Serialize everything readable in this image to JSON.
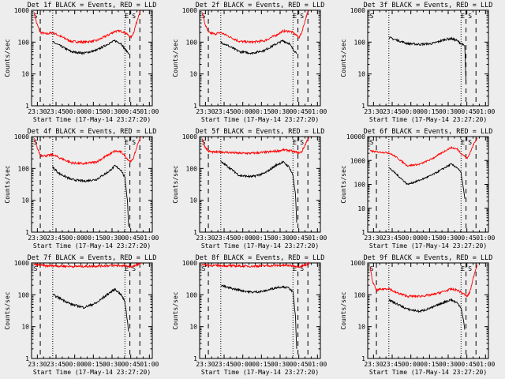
{
  "figure": {
    "xlabel": "Start Time (17-May-14 23:27:20)",
    "ylabel": "Counts/sec",
    "x_ticks": [
      "23:30",
      "23:45",
      "00:00",
      "00:15",
      "00:30",
      "00:45",
      "01:00"
    ],
    "y_ticks": [
      "1",
      "10",
      "100",
      "1000"
    ],
    "marker_s": "S",
    "marker_e": "E",
    "colors": {
      "events": "#000000",
      "lld": "#ff0000",
      "background": "#ededed"
    }
  },
  "chart_data": [
    {
      "type": "line",
      "title": "Det 1f BLACK = Events, RED = LLD",
      "ylim": [
        1,
        1000
      ],
      "x_minutes_range": [
        -2,
        95
      ],
      "dashed_x": [
        5,
        77,
        85
      ],
      "dotted_x": [
        15,
        73
      ],
      "series": [
        {
          "name": "LLD",
          "color": "#ff0000",
          "x": [
            0,
            2,
            5,
            10,
            15,
            20,
            30,
            40,
            50,
            60,
            65,
            70,
            73,
            76,
            78,
            80,
            84,
            86
          ],
          "y": [
            900,
            400,
            200,
            180,
            200,
            160,
            105,
            100,
            110,
            170,
            220,
            220,
            200,
            160,
            140,
            200,
            700,
            1000
          ]
        },
        {
          "name": "Events",
          "color": "#000000",
          "x": [
            15,
            20,
            30,
            40,
            50,
            60,
            65,
            70,
            73,
            76
          ],
          "y": [
            100,
            80,
            50,
            45,
            55,
            90,
            110,
            90,
            60,
            45
          ]
        }
      ]
    },
    {
      "type": "line",
      "title": "Det 2f BLACK = Events, RED = LLD",
      "ylim": [
        1,
        1000
      ],
      "x_minutes_range": [
        -2,
        95
      ],
      "dashed_x": [
        5,
        77,
        85
      ],
      "dotted_x": [
        15,
        73
      ],
      "series": [
        {
          "name": "LLD",
          "color": "#ff0000",
          "x": [
            0,
            2,
            5,
            10,
            15,
            20,
            30,
            40,
            50,
            60,
            65,
            70,
            73,
            76,
            78,
            80,
            84,
            86
          ],
          "y": [
            900,
            400,
            200,
            180,
            200,
            160,
            105,
            100,
            110,
            170,
            220,
            220,
            200,
            160,
            140,
            200,
            700,
            1000
          ]
        },
        {
          "name": "Events",
          "color": "#000000",
          "x": [
            15,
            20,
            30,
            40,
            50,
            60,
            65,
            70,
            73,
            76
          ],
          "y": [
            100,
            80,
            50,
            45,
            55,
            90,
            110,
            90,
            60,
            45
          ]
        }
      ]
    },
    {
      "type": "line",
      "title": "Det 3f BLACK = Events, RED = LLD",
      "ylim": [
        1,
        1000
      ],
      "x_minutes_range": [
        -2,
        95
      ],
      "dashed_x": [
        77,
        85
      ],
      "dotted_x": [
        15,
        73
      ],
      "series": [
        {
          "name": "Events",
          "color": "#000000",
          "x": [
            15,
            20,
            30,
            40,
            50,
            60,
            65,
            70,
            73,
            76,
            77
          ],
          "y": [
            140,
            120,
            90,
            85,
            90,
            120,
            130,
            110,
            90,
            75,
            5
          ]
        }
      ]
    },
    {
      "type": "line",
      "title": "Det 4f BLACK = Events, RED = LLD",
      "ylim": [
        1,
        1000
      ],
      "x_minutes_range": [
        -2,
        95
      ],
      "dashed_x": [
        5,
        77,
        85
      ],
      "dotted_x": [
        15,
        73
      ],
      "series": [
        {
          "name": "LLD",
          "color": "#ff0000",
          "x": [
            0,
            2,
            5,
            10,
            15,
            20,
            30,
            40,
            50,
            60,
            65,
            70,
            73,
            76,
            78,
            80,
            84,
            86
          ],
          "y": [
            900,
            500,
            260,
            250,
            270,
            220,
            150,
            140,
            160,
            270,
            350,
            330,
            250,
            180,
            160,
            220,
            700,
            1000
          ]
        },
        {
          "name": "Events",
          "color": "#000000",
          "x": [
            15,
            20,
            30,
            40,
            50,
            60,
            65,
            70,
            73,
            75,
            76
          ],
          "y": [
            110,
            70,
            45,
            40,
            45,
            80,
            120,
            90,
            50,
            10,
            1.5
          ]
        }
      ]
    },
    {
      "type": "line",
      "title": "Det 5f BLACK = Events, RED = LLD",
      "ylim": [
        1,
        1000
      ],
      "x_minutes_range": [
        -2,
        95
      ],
      "dashed_x": [
        5,
        77,
        85
      ],
      "dotted_x": [
        15,
        73
      ],
      "series": [
        {
          "name": "LLD",
          "color": "#ff0000",
          "x": [
            0,
            2,
            5,
            10,
            15,
            20,
            30,
            40,
            50,
            60,
            65,
            70,
            73,
            76,
            78,
            80,
            84,
            86
          ],
          "y": [
            900,
            500,
            350,
            320,
            330,
            320,
            300,
            300,
            320,
            350,
            380,
            370,
            340,
            320,
            310,
            330,
            700,
            1000
          ]
        },
        {
          "name": "Events",
          "color": "#000000",
          "x": [
            15,
            20,
            30,
            40,
            50,
            60,
            65,
            70,
            73,
            75,
            76
          ],
          "y": [
            160,
            120,
            60,
            55,
            70,
            130,
            160,
            110,
            60,
            15,
            2
          ]
        }
      ]
    },
    {
      "type": "line",
      "title": "Det 6f BLACK = Events, RED = LLD",
      "ylim": [
        1,
        10000
      ],
      "x_minutes_range": [
        -2,
        95
      ],
      "dashed_x": [
        5,
        77,
        85
      ],
      "dotted_x": [
        15,
        73
      ],
      "series": [
        {
          "name": "LLD",
          "color": "#ff0000",
          "x": [
            0,
            2,
            5,
            10,
            15,
            20,
            30,
            40,
            50,
            60,
            65,
            70,
            73,
            76,
            78,
            80,
            84,
            86
          ],
          "y": [
            2500,
            2400,
            2300,
            2200,
            2100,
            1500,
            600,
            700,
            1200,
            2500,
            3500,
            3000,
            2000,
            1500,
            1200,
            2000,
            6000,
            9000
          ]
        },
        {
          "name": "Events",
          "color": "#000000",
          "x": [
            15,
            20,
            30,
            40,
            50,
            60,
            65,
            70,
            73,
            75,
            76
          ],
          "y": [
            500,
            300,
            100,
            150,
            250,
            500,
            700,
            500,
            300,
            60,
            25
          ]
        }
      ]
    },
    {
      "type": "line",
      "title": "Det 7f BLACK = Events, RED = LLD",
      "ylim": [
        1,
        1000
      ],
      "x_minutes_range": [
        -2,
        95
      ],
      "dashed_x": [
        5,
        77,
        85
      ],
      "dotted_x": [
        15,
        73
      ],
      "series": [
        {
          "name": "LLD",
          "color": "#ff0000",
          "x": [
            0,
            5,
            10,
            15,
            20,
            30,
            40,
            50,
            60,
            65,
            70,
            73,
            76,
            78,
            80,
            84,
            86
          ],
          "y": [
            900,
            850,
            800,
            820,
            800,
            780,
            780,
            800,
            820,
            830,
            820,
            800,
            780,
            760,
            800,
            900,
            1000
          ]
        },
        {
          "name": "Events",
          "color": "#000000",
          "x": [
            15,
            20,
            30,
            40,
            50,
            60,
            65,
            70,
            73,
            75,
            76
          ],
          "y": [
            100,
            80,
            50,
            40,
            55,
            110,
            150,
            100,
            60,
            15,
            7
          ]
        }
      ]
    },
    {
      "type": "line",
      "title": "Det 8f BLACK = Events, RED = LLD",
      "ylim": [
        1,
        1000
      ],
      "x_minutes_range": [
        -2,
        95
      ],
      "dashed_x": [
        5,
        77,
        85
      ],
      "dotted_x": [
        15,
        73
      ],
      "series": [
        {
          "name": "LLD",
          "color": "#ff0000",
          "x": [
            0,
            5,
            10,
            15,
            20,
            30,
            40,
            50,
            60,
            65,
            70,
            73,
            76,
            78,
            80,
            84,
            86
          ],
          "y": [
            900,
            850,
            820,
            830,
            810,
            800,
            790,
            810,
            830,
            840,
            830,
            810,
            790,
            770,
            800,
            900,
            1000
          ]
        },
        {
          "name": "Events",
          "color": "#000000",
          "x": [
            15,
            20,
            30,
            40,
            50,
            55,
            60,
            65,
            70,
            73,
            75,
            76
          ],
          "y": [
            200,
            170,
            140,
            120,
            130,
            150,
            170,
            180,
            160,
            120,
            20,
            2
          ]
        }
      ]
    },
    {
      "type": "line",
      "title": "Det 9f BLACK = Events, RED = LLD",
      "ylim": [
        1,
        1000
      ],
      "x_minutes_range": [
        -2,
        95
      ],
      "dashed_x": [
        5,
        77,
        85
      ],
      "dotted_x": [
        15,
        73
      ],
      "series": [
        {
          "name": "LLD",
          "color": "#ff0000",
          "x": [
            0,
            2,
            5,
            10,
            15,
            20,
            30,
            40,
            50,
            60,
            65,
            70,
            73,
            76,
            78,
            80,
            84,
            86
          ],
          "y": [
            700,
            250,
            140,
            150,
            160,
            120,
            90,
            90,
            100,
            130,
            150,
            140,
            120,
            100,
            90,
            120,
            500,
            900
          ]
        },
        {
          "name": "Events",
          "color": "#000000",
          "x": [
            15,
            20,
            30,
            40,
            50,
            60,
            65,
            70,
            73,
            75,
            76
          ],
          "y": [
            70,
            55,
            35,
            30,
            40,
            60,
            70,
            55,
            40,
            15,
            8
          ]
        }
      ]
    }
  ]
}
